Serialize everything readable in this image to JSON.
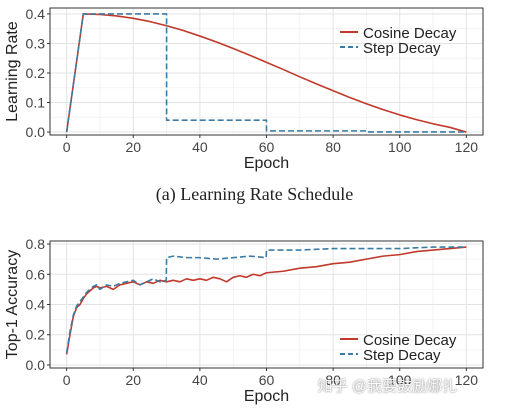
{
  "chart_data": [
    {
      "type": "line",
      "xlabel": "Epoch",
      "ylabel": "Learning Rate",
      "xlim": [
        -5,
        125
      ],
      "ylim": [
        -0.01,
        0.42
      ],
      "xticks": [
        0,
        20,
        40,
        60,
        80,
        100,
        120
      ],
      "yticks": [
        0.0,
        0.1,
        0.2,
        0.3,
        0.4
      ],
      "ytick_labels": [
        "0.0",
        "0.1",
        "0.2",
        "0.3",
        "0.4"
      ],
      "grid": true,
      "legend": "top-right",
      "series": [
        {
          "name": "Cosine Decay",
          "color": "#c0392b",
          "style": "solid",
          "x": [
            0,
            5,
            10,
            15,
            20,
            25,
            30,
            35,
            40,
            45,
            50,
            55,
            60,
            65,
            70,
            75,
            80,
            85,
            90,
            95,
            100,
            105,
            110,
            115,
            120
          ],
          "y": [
            0.0,
            0.4,
            0.398,
            0.393,
            0.385,
            0.374,
            0.36,
            0.344,
            0.325,
            0.305,
            0.283,
            0.26,
            0.236,
            0.212,
            0.187,
            0.163,
            0.14,
            0.117,
            0.096,
            0.076,
            0.058,
            0.042,
            0.028,
            0.016,
            0.0
          ]
        },
        {
          "name": "Step Decay",
          "color": "#3a7ca5",
          "style": "dashed",
          "x": [
            0,
            5,
            30,
            30,
            60,
            60,
            90,
            90,
            120
          ],
          "y": [
            0.0,
            0.4,
            0.4,
            0.04,
            0.04,
            0.004,
            0.004,
            0.0004,
            0.0004
          ]
        }
      ]
    },
    {
      "type": "line",
      "xlabel": "Epoch",
      "ylabel": "Top-1 Accuracy",
      "xlim": [
        -5,
        125
      ],
      "ylim": [
        -0.02,
        0.82
      ],
      "xticks": [
        0,
        20,
        40,
        60,
        80,
        100,
        120
      ],
      "yticks": [
        0.0,
        0.2,
        0.4,
        0.6,
        0.8
      ],
      "ytick_labels": [
        "0.0",
        "0.2",
        "0.4",
        "0.6",
        "0.8"
      ],
      "grid": true,
      "legend": "bottom-right",
      "series": [
        {
          "name": "Cosine Decay",
          "color": "#c0392b",
          "style": "solid",
          "x": [
            0,
            1,
            2,
            3,
            4,
            5,
            6,
            7,
            8,
            9,
            10,
            12,
            14,
            16,
            18,
            20,
            22,
            24,
            26,
            28,
            30,
            32,
            34,
            36,
            38,
            40,
            42,
            44,
            46,
            48,
            50,
            52,
            54,
            56,
            58,
            60,
            65,
            70,
            75,
            80,
            85,
            90,
            95,
            100,
            105,
            110,
            115,
            120
          ],
          "y": [
            0.07,
            0.2,
            0.32,
            0.38,
            0.4,
            0.44,
            0.47,
            0.49,
            0.51,
            0.52,
            0.51,
            0.52,
            0.5,
            0.53,
            0.54,
            0.55,
            0.53,
            0.55,
            0.54,
            0.56,
            0.55,
            0.56,
            0.55,
            0.57,
            0.56,
            0.57,
            0.56,
            0.58,
            0.57,
            0.55,
            0.58,
            0.59,
            0.58,
            0.6,
            0.59,
            0.61,
            0.62,
            0.64,
            0.65,
            0.67,
            0.68,
            0.7,
            0.72,
            0.73,
            0.75,
            0.76,
            0.77,
            0.78
          ]
        },
        {
          "name": "Step Decay",
          "color": "#3a7ca5",
          "style": "dashed",
          "x": [
            0,
            1,
            2,
            3,
            4,
            5,
            6,
            7,
            8,
            9,
            10,
            12,
            14,
            16,
            18,
            20,
            22,
            24,
            26,
            28,
            29.9,
            30,
            32,
            36,
            40,
            45,
            50,
            55,
            59.9,
            60,
            65,
            70,
            80,
            90,
            100,
            110,
            120
          ],
          "y": [
            0.08,
            0.22,
            0.33,
            0.39,
            0.42,
            0.45,
            0.48,
            0.5,
            0.52,
            0.53,
            0.5,
            0.53,
            0.52,
            0.54,
            0.55,
            0.56,
            0.53,
            0.55,
            0.57,
            0.55,
            0.56,
            0.71,
            0.72,
            0.71,
            0.71,
            0.7,
            0.71,
            0.72,
            0.71,
            0.76,
            0.76,
            0.76,
            0.77,
            0.77,
            0.77,
            0.78,
            0.78
          ]
        }
      ]
    }
  ],
  "caption": "(a) Learning Rate Schedule",
  "watermark": "知乎 @我要鼓励娜扎"
}
